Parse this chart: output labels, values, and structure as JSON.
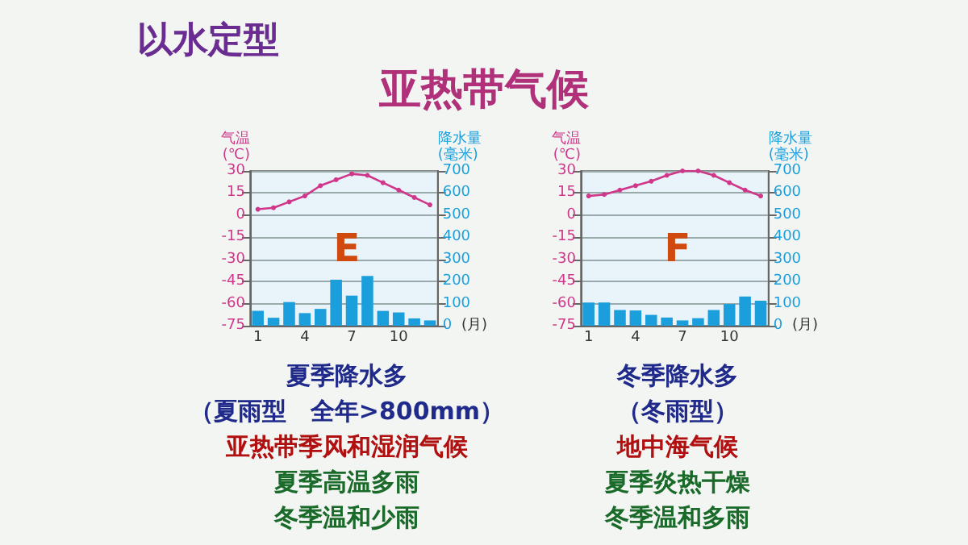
{
  "chart_data": [
    {
      "type": "bar",
      "title": "E",
      "xlabel": "(月)",
      "ylabel": "气温\n(℃)",
      "y2label": "降水量\n(毫米)",
      "annotations": [
        "以水定型",
        "亚热带气候",
        "夏季降水多",
        "（夏雨型　全年>800mm）",
        "亚热带季风和湿润气候",
        "夏季高温多雨",
        "冬季温和少雨"
      ],
      "categories": [
        "1",
        null,
        null,
        "4",
        null,
        null,
        "7",
        null,
        null,
        "10",
        null,
        null
      ],
      "series": [
        {
          "axis": "y2",
          "color": "#1a9fdc",
          "values": [
            67,
            36,
            107,
            57,
            76,
            208,
            136,
            225,
            67,
            60,
            33,
            24
          ]
        },
        {
          "type": "line",
          "color": "#d0378a",
          "values": [
            4,
            5,
            9,
            13,
            20,
            24,
            28,
            27,
            22,
            17,
            12,
            7
          ]
        }
      ],
      "ylim": [
        -75,
        30
      ],
      "yticks": [
        -75,
        -60,
        -45,
        -30,
        -15,
        0,
        15,
        30
      ],
      "y2lim": [
        0,
        700
      ],
      "y2ticks": [
        0,
        100,
        200,
        300,
        400,
        500,
        600,
        700
      ],
      "grid": "y",
      "marker": "circle",
      "line_style": "solid"
    },
    {
      "type": "bar",
      "title": "F",
      "xlabel": "(月)",
      "ylabel": "气温\n(℃)",
      "y2label": "降水量\n(毫米)",
      "annotations": [
        "冬季降水多",
        "（冬雨型）",
        "地中海气候",
        "夏季炎热干燥",
        "冬季温和多雨"
      ],
      "categories": [
        "1",
        null,
        null,
        "4",
        null,
        null,
        "7",
        null,
        null,
        "10",
        null,
        null
      ],
      "series": [
        {
          "axis": "y2",
          "color": "#1a9fdc",
          "values": [
            105,
            105,
            71,
            69,
            49,
            37,
            24,
            34,
            71,
            98,
            132,
            113
          ]
        },
        {
          "type": "line",
          "color": "#d0378a",
          "values": [
            13,
            14,
            17,
            20,
            23,
            27,
            30,
            30,
            27,
            22,
            17,
            13
          ]
        }
      ],
      "ylim": [
        -75,
        30
      ],
      "yticks": [
        -75,
        -60,
        -45,
        -30,
        -15,
        0,
        15,
        30
      ],
      "y2lim": [
        0,
        700
      ],
      "y2ticks": [
        0,
        100,
        200,
        300,
        400,
        500,
        600,
        700
      ],
      "grid": "y",
      "marker": "circle",
      "line_style": "solid"
    }
  ]
}
